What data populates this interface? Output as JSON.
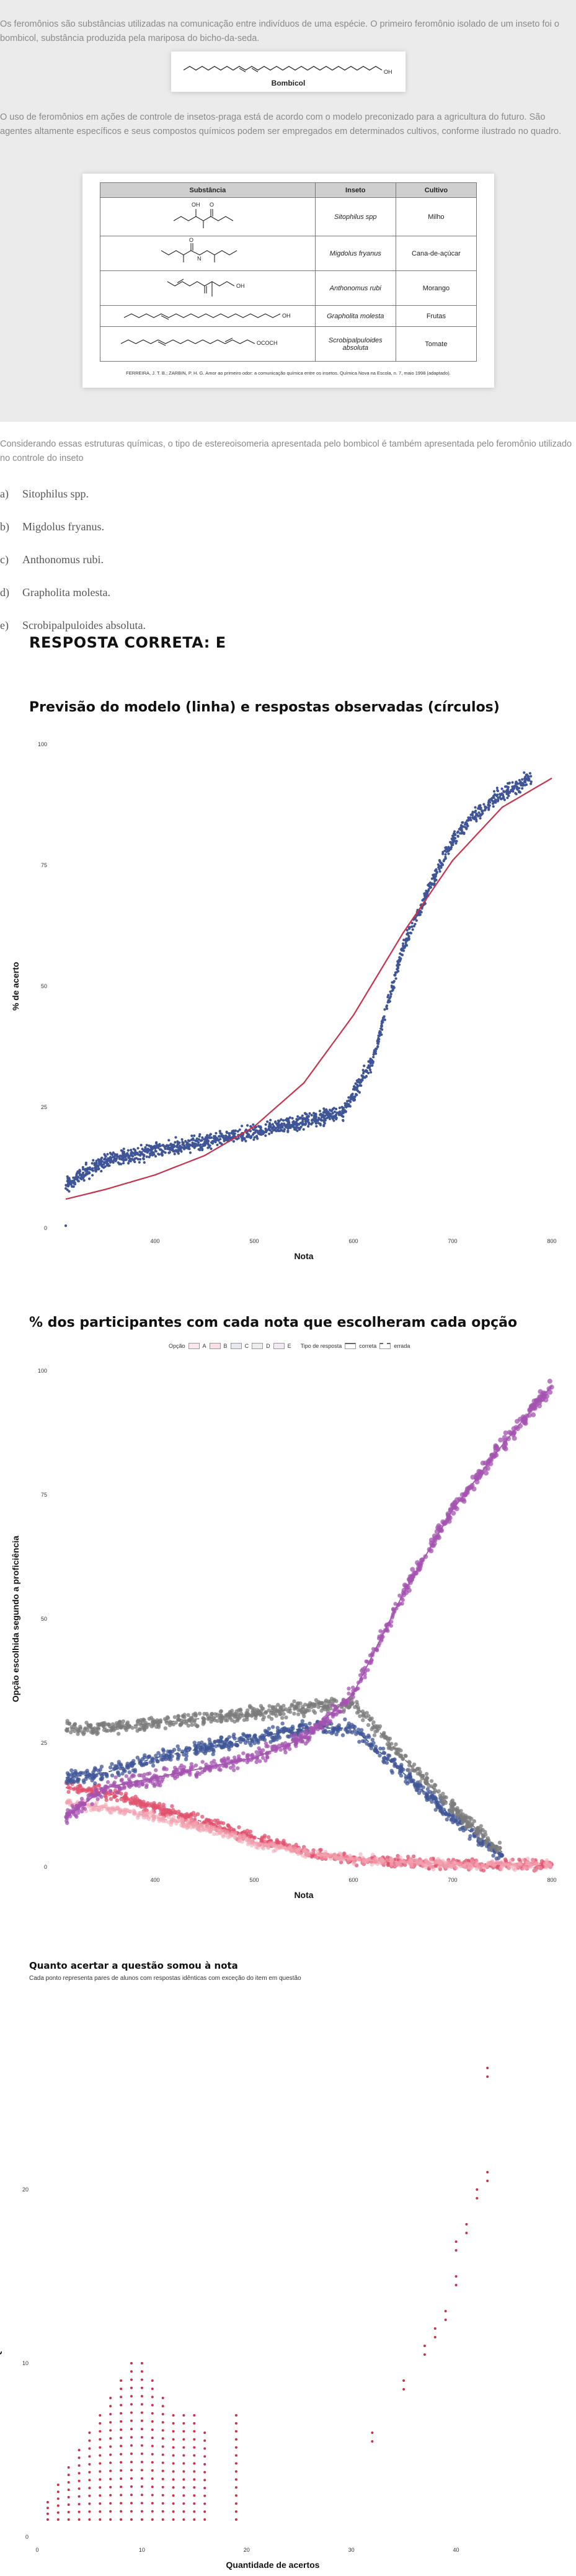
{
  "question": {
    "intro": "Os feromônios são substâncias utilizadas na comunicação entre indivíduos de uma espécie. O primeiro feromônio isolado de um inseto foi o bombicol, substância produzida pela mariposa do bicho-da-seda.",
    "bombicol_label": "Bombicol",
    "bombicol_oh": "OH",
    "context": "O uso de feromônios em ações de controle de insetos-praga está de acordo com o modelo preconizado para a agricultura do futuro. São agentes altamente específicos e seus compostos químicos podem ser empregados em determinados cultivos, conforme ilustrado no quadro.",
    "table": {
      "headers": [
        "Substância",
        "Inseto",
        "Cultivo"
      ],
      "rows": [
        {
          "insect": "Sitophilus spp",
          "crop": "Milho"
        },
        {
          "insect": "Migdolus fryanus",
          "crop": "Cana-de-açúcar"
        },
        {
          "insect": "Anthonomus rubi",
          "crop": "Morango"
        },
        {
          "insect": "Grapholita molesta",
          "crop": "Frutas"
        },
        {
          "insect": "Scrobipalpuloides absoluta",
          "crop": "Tomate"
        }
      ],
      "source": "FERREIRA, J. T. B.; ZARBIN, P. H. G. Amor ao primeiro odor: a comunicação química entre os insetos. Química Nova na Escola, n. 7, maio 1998 (adaptado).",
      "labels": {
        "oh": "OH",
        "o": "O",
        "n": "N",
        "ococh3": "OCOCH"
      }
    },
    "prompt": "Considerando essas estruturas químicas, o tipo de estereoisomeria apresentada pelo bombicol é também apresentada pelo feromônio utilizado no controle do inseto",
    "options": [
      {
        "letter": "a)",
        "text": "Sitophilus spp."
      },
      {
        "letter": "b)",
        "text": "Migdolus fryanus."
      },
      {
        "letter": "c)",
        "text": "Anthonomus rubi."
      },
      {
        "letter": "d)",
        "text": "Grapholita molesta."
      },
      {
        "letter": "e)",
        "text": "Scrobipalpuloides absoluta."
      }
    ],
    "answer": "RESPOSTA CORRETA: E"
  },
  "colors": {
    "curve_red": "#c8324d",
    "dots_blue": "#3f5597",
    "option_a": "#e0526e",
    "option_b": "#f3a0ae",
    "option_c": "#3f5597",
    "option_d": "#7b7b7b",
    "option_e": "#a453b0",
    "impact_dots": "#c8324d"
  },
  "chart_data": [
    {
      "type": "scatter",
      "title": "Previsão do modelo (linha) e respostas observadas (círculos)",
      "xlabel": "Nota",
      "ylabel": "% de acerto",
      "xlim": [
        300,
        800
      ],
      "ylim": [
        0,
        100
      ],
      "xticks": [
        "400",
        "500",
        "600",
        "700",
        "800"
      ],
      "yticks": [
        "0",
        "25",
        "50",
        "75",
        "100"
      ],
      "grid": false,
      "series": [
        {
          "kind": "points",
          "x": [
            310,
            350,
            400,
            450,
            500,
            550,
            590,
            620,
            650,
            680,
            700,
            720,
            750,
            780
          ],
          "y": [
            9,
            14,
            16,
            18,
            20,
            22,
            24,
            35,
            58,
            72,
            80,
            85,
            90,
            93
          ]
        },
        {
          "kind": "line",
          "x": [
            310,
            350,
            400,
            450,
            500,
            550,
            600,
            650,
            700,
            750,
            800
          ],
          "y": [
            6,
            8,
            11,
            15,
            21,
            30,
            44,
            61,
            76,
            87,
            93
          ]
        }
      ]
    },
    {
      "type": "scatter",
      "title": "% dos participantes com cada nota que escolheram cada opção",
      "xlabel": "Nota",
      "ylabel": "Opção escolhida segundo a proficiência",
      "xlim": [
        300,
        800
      ],
      "ylim": [
        0,
        100
      ],
      "xticks": [
        "400",
        "500",
        "600",
        "700",
        "800"
      ],
      "yticks": [
        "0",
        "25",
        "50",
        "75",
        "100"
      ],
      "legend": {
        "position": "top",
        "option_title": "Opção",
        "options": [
          "A",
          "B",
          "C",
          "D",
          "E"
        ],
        "type_title": "Tipo de resposta",
        "types": [
          "correta",
          "errada"
        ]
      },
      "series": [
        {
          "name": "A",
          "x": [
            310,
            350,
            400,
            450,
            500,
            550,
            600,
            650,
            700,
            750,
            800
          ],
          "y": [
            16,
            15,
            12,
            9,
            6,
            3,
            1.5,
            1,
            0.5,
            0.5,
            0.5
          ]
        },
        {
          "name": "B",
          "x": [
            310,
            350,
            400,
            450,
            500,
            550,
            600,
            650,
            700,
            750,
            800
          ],
          "y": [
            13,
            12,
            10,
            8,
            5,
            3,
            1.5,
            1,
            0.5,
            0.5,
            0.5
          ]
        },
        {
          "name": "C",
          "x": [
            310,
            350,
            400,
            450,
            500,
            550,
            600,
            650,
            700,
            750
          ],
          "y": [
            18,
            19,
            22,
            24,
            26,
            28,
            28,
            19,
            10,
            2
          ]
        },
        {
          "name": "D",
          "x": [
            310,
            350,
            400,
            450,
            500,
            550,
            600,
            650,
            700,
            750
          ],
          "y": [
            28,
            28,
            29,
            30,
            31,
            32,
            33,
            22,
            12,
            3
          ]
        },
        {
          "name": "E",
          "x": [
            310,
            350,
            400,
            450,
            500,
            550,
            600,
            650,
            700,
            750,
            800
          ],
          "y": [
            10,
            16,
            18,
            20,
            22,
            26,
            35,
            55,
            72,
            85,
            97
          ]
        }
      ]
    },
    {
      "type": "scatter",
      "title": "Quanto acertar a questão somou à nota",
      "subtitle": "Cada ponto representa pares de alunos com respostas idênticas com exceção do item em questão",
      "xlabel": "Quantidade de acertos",
      "ylabel": "Quanto acertar o item aumentou a nota",
      "xlim": [
        0,
        45
      ],
      "ylim": [
        0,
        30
      ],
      "xticks": [
        "0",
        "10",
        "20",
        "30",
        "40"
      ],
      "yticks": [
        "0",
        "10",
        "20"
      ],
      "series": [
        {
          "kind": "points",
          "x": [
            1,
            2,
            3,
            4,
            5,
            6,
            7,
            8,
            9,
            10,
            11,
            12,
            13,
            14,
            15,
            16,
            19,
            32,
            35,
            37,
            38,
            39,
            40,
            40,
            41,
            42,
            43,
            43
          ],
          "y": [
            2,
            3,
            4,
            5,
            6,
            7,
            8,
            9,
            10,
            10,
            9,
            8,
            7,
            7,
            7,
            6,
            7,
            6,
            9,
            11,
            12,
            13,
            15,
            17,
            18,
            20,
            21,
            27
          ]
        }
      ]
    }
  ]
}
